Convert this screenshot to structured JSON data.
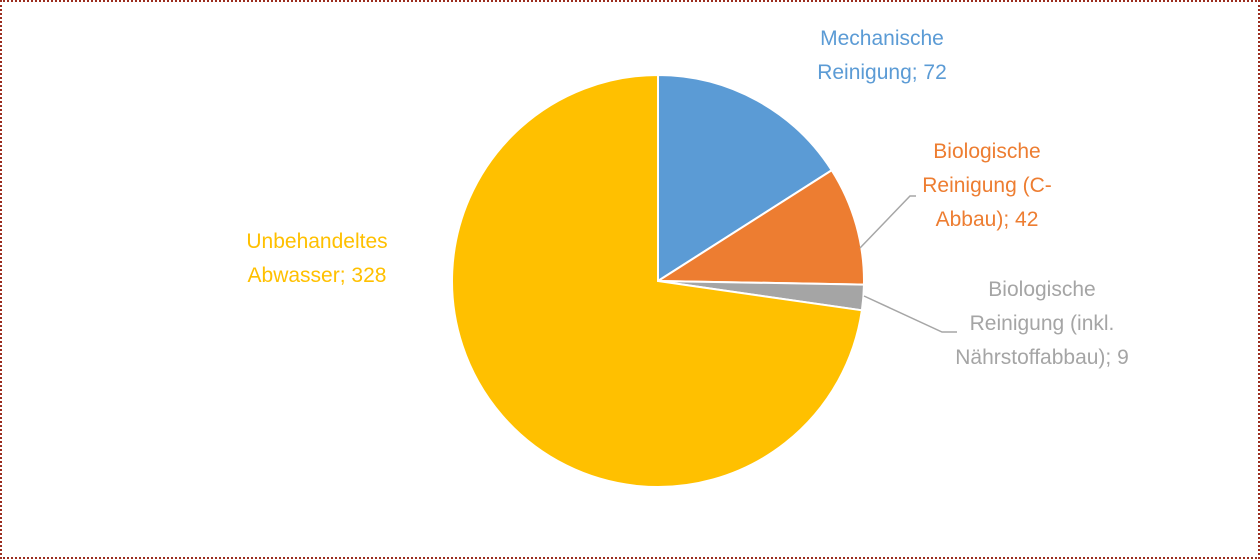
{
  "chart_data": {
    "type": "pie",
    "values": [
      72,
      42,
      9,
      328
    ],
    "value_labels": [
      "Mechanische Reinigung; 72",
      "Biologische Reinigung (C-Abbau); 42",
      "Biologische Reinigung (inkl. Nährstoffabbau); 9",
      "Unbehandeltes Abwasser; 328"
    ],
    "colors": [
      "#5b9bd5",
      "#ed7d31",
      "#a5a5a5",
      "#ffc000"
    ]
  }
}
